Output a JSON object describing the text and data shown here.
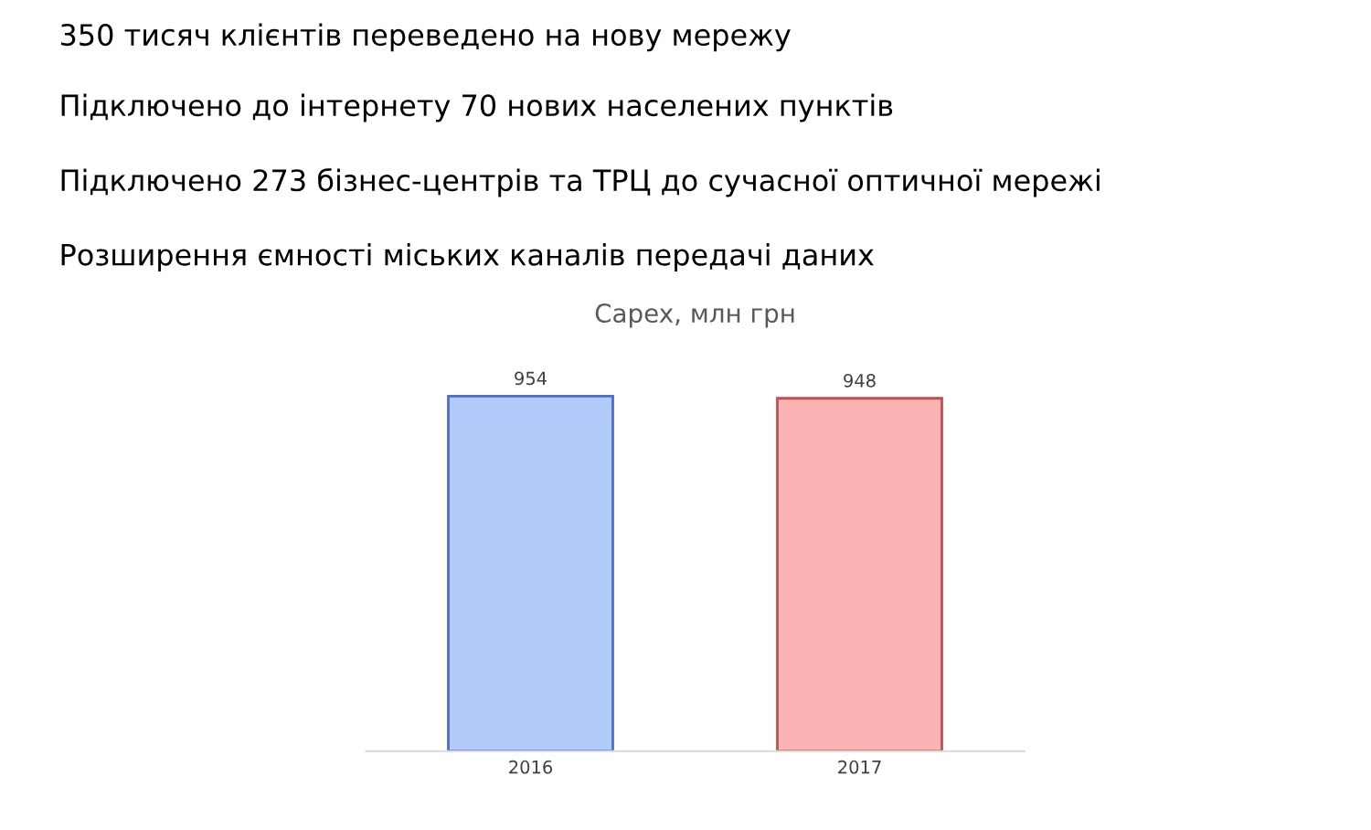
{
  "chart_data": {
    "type": "bar",
    "title": "Capex, млн грн",
    "categories": [
      "2016",
      "2017"
    ],
    "values": [
      954,
      948
    ],
    "colors": [
      "#b3cbfa",
      "#fbb3b3"
    ],
    "data_labels": true,
    "grid": false,
    "legend": false,
    "annotations": [
      "350 тисяч клієнтів переведено на нову мережу",
      "Підключено до інтернету 70 нових населених пунктів",
      "Підключено 273 бізнес-центрів та ТРЦ до сучасної оптичної мережі",
      "Розширення ємності міських каналів передачі даних"
    ]
  }
}
